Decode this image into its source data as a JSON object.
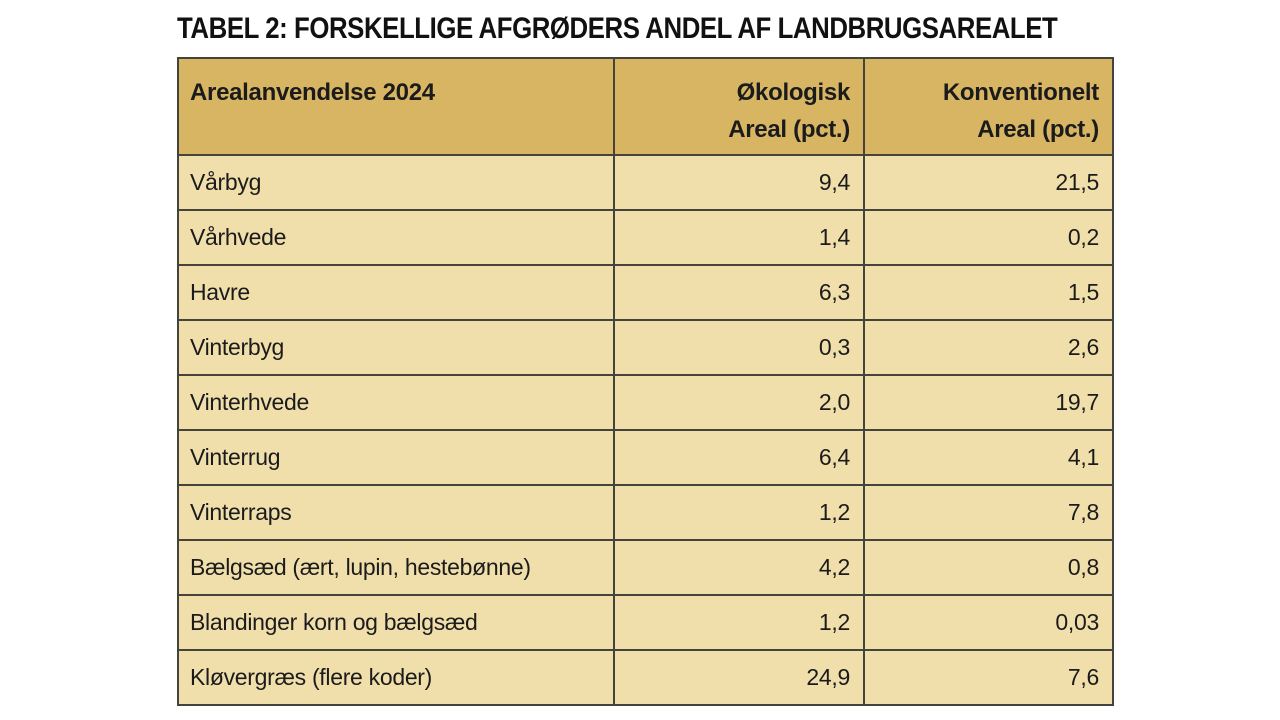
{
  "title": "TABEL 2: FORSKELLIGE AFGRØDERS ANDEL AF LANDBRUGSAREALET",
  "table": {
    "header": {
      "col1": "Arealanvendelse 2024",
      "col2_line1": "Økologisk",
      "col2_line2": "Areal (pct.)",
      "col3_line1": "Konventionelt",
      "col3_line2": "Areal (pct.)"
    },
    "rows": [
      {
        "name": "Vårbyg",
        "okologisk": "9,4",
        "konventionelt": "21,5"
      },
      {
        "name": "Vårhvede",
        "okologisk": "1,4",
        "konventionelt": "0,2"
      },
      {
        "name": "Havre",
        "okologisk": "6,3",
        "konventionelt": "1,5"
      },
      {
        "name": "Vinterbyg",
        "okologisk": "0,3",
        "konventionelt": "2,6"
      },
      {
        "name": "Vinterhvede",
        "okologisk": "2,0",
        "konventionelt": "19,7"
      },
      {
        "name": "Vinterrug",
        "okologisk": "6,4",
        "konventionelt": "4,1"
      },
      {
        "name": "Vinterraps",
        "okologisk": "1,2",
        "konventionelt": "7,8"
      },
      {
        "name": "Bælgsæd (ært, lupin, hestebønne)",
        "okologisk": "4,2",
        "konventionelt": "0,8"
      },
      {
        "name": "Blandinger korn og bælgsæd",
        "okologisk": "1,2",
        "konventionelt": "0,03"
      },
      {
        "name": "Kløvergræs (flere koder)",
        "okologisk": "24,9",
        "konventionelt": "7,6"
      }
    ]
  },
  "colors": {
    "page_bg": "#ffffff",
    "header_bg": "#d7b563",
    "row_bg": "#f1dfab",
    "border": "#45443c",
    "text": "#1b1b1b",
    "title_text": "#111111"
  }
}
